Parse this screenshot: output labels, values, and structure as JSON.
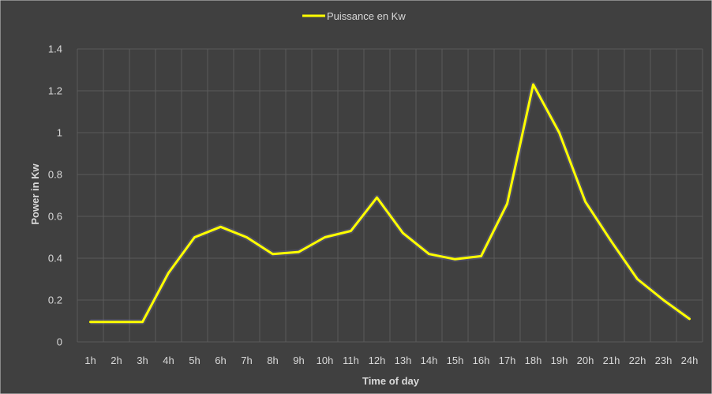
{
  "colors": {
    "background": "#404040",
    "grid": "#5a5a5a",
    "line": "#ffff00",
    "text": "#d9d9d9",
    "border": "#cfcfcf"
  },
  "chart_data": {
    "type": "line",
    "title": "",
    "xlabel": "Time of day",
    "ylabel": "Power in Kw",
    "legend_position": "top-center",
    "grid": true,
    "ylim": [
      0,
      1.4
    ],
    "y_ticks": [
      "0",
      "0.2",
      "0.4",
      "0.6",
      "0.8",
      "1",
      "1.2",
      "1.4"
    ],
    "categories": [
      "1h",
      "2h",
      "3h",
      "4h",
      "5h",
      "6h",
      "7h",
      "8h",
      "9h",
      "10h",
      "11h",
      "12h",
      "13h",
      "14h",
      "15h",
      "16h",
      "17h",
      "18h",
      "19h",
      "20h",
      "21h",
      "22h",
      "23h",
      "24h"
    ],
    "series": [
      {
        "name": "Puissance en Kw",
        "color": "#ffff00",
        "values": [
          0.095,
          0.095,
          0.095,
          0.33,
          0.5,
          0.55,
          0.5,
          0.42,
          0.43,
          0.5,
          0.53,
          0.69,
          0.52,
          0.42,
          0.395,
          0.41,
          0.66,
          1.23,
          1.0,
          0.67,
          0.48,
          0.3,
          0.2,
          0.11
        ]
      }
    ]
  }
}
